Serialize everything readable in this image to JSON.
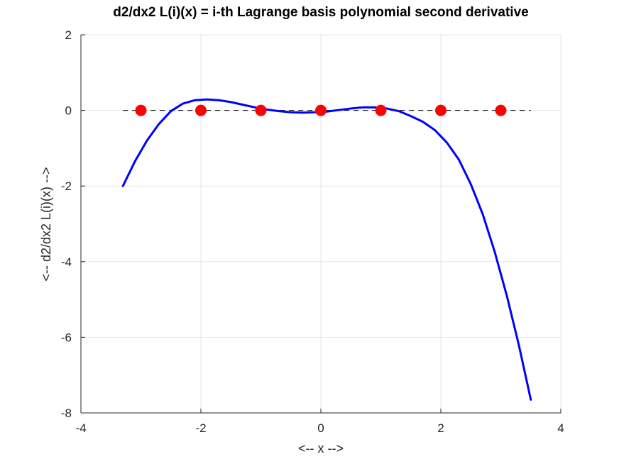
{
  "chart_data": {
    "type": "line",
    "title": "d2/dx2 L(i)(x) = i-th Lagrange basis polynomial second derivative",
    "xlabel": "<-- x -->",
    "ylabel": "<-- d2/dx2 L(i)(x) -->",
    "xlim": [
      -4,
      4
    ],
    "ylim": [
      -8,
      2
    ],
    "xticks": [
      -4,
      -2,
      0,
      2,
      4
    ],
    "yticks": [
      -8,
      -6,
      -4,
      -2,
      0,
      2
    ],
    "xtick_labels": [
      "-4",
      "-2",
      "0",
      "2",
      "4"
    ],
    "ytick_labels": [
      "-8",
      "-6",
      "-4",
      "-2",
      "0",
      "2"
    ],
    "grid": true,
    "series": [
      {
        "color": "#0000ff",
        "style": "solid",
        "x": [
          -3.3,
          -3.1,
          -2.9,
          -2.7,
          -2.5,
          -2.3,
          -2.1,
          -1.9,
          -1.7,
          -1.5,
          -1.3,
          -1.1,
          -0.9,
          -0.7,
          -0.5,
          -0.3,
          -0.1,
          0.1,
          0.3,
          0.5,
          0.7,
          0.9,
          1.1,
          1.3,
          1.5,
          1.7,
          1.9,
          2.1,
          2.3,
          2.5,
          2.7,
          2.9,
          3.1,
          3.3,
          3.5
        ],
        "y": [
          -2.0,
          -1.35,
          -0.8,
          -0.36,
          -0.02,
          0.18,
          0.27,
          0.29,
          0.27,
          0.22,
          0.15,
          0.08,
          0.02,
          -0.02,
          -0.05,
          -0.06,
          -0.05,
          -0.03,
          0.01,
          0.05,
          0.08,
          0.08,
          0.05,
          -0.02,
          -0.15,
          -0.3,
          -0.52,
          -0.85,
          -1.3,
          -1.95,
          -2.75,
          -3.75,
          -4.9,
          -6.2,
          -7.65
        ]
      },
      {
        "color": "#000000",
        "style": "dashed",
        "x": [
          -3.3,
          3.5
        ],
        "y": [
          0,
          0
        ]
      }
    ],
    "points": {
      "color": "#ff0000",
      "x": [
        -3,
        -2,
        -1,
        0,
        1,
        2,
        3
      ],
      "y": [
        0,
        0,
        0,
        0,
        0,
        0,
        0
      ]
    }
  }
}
